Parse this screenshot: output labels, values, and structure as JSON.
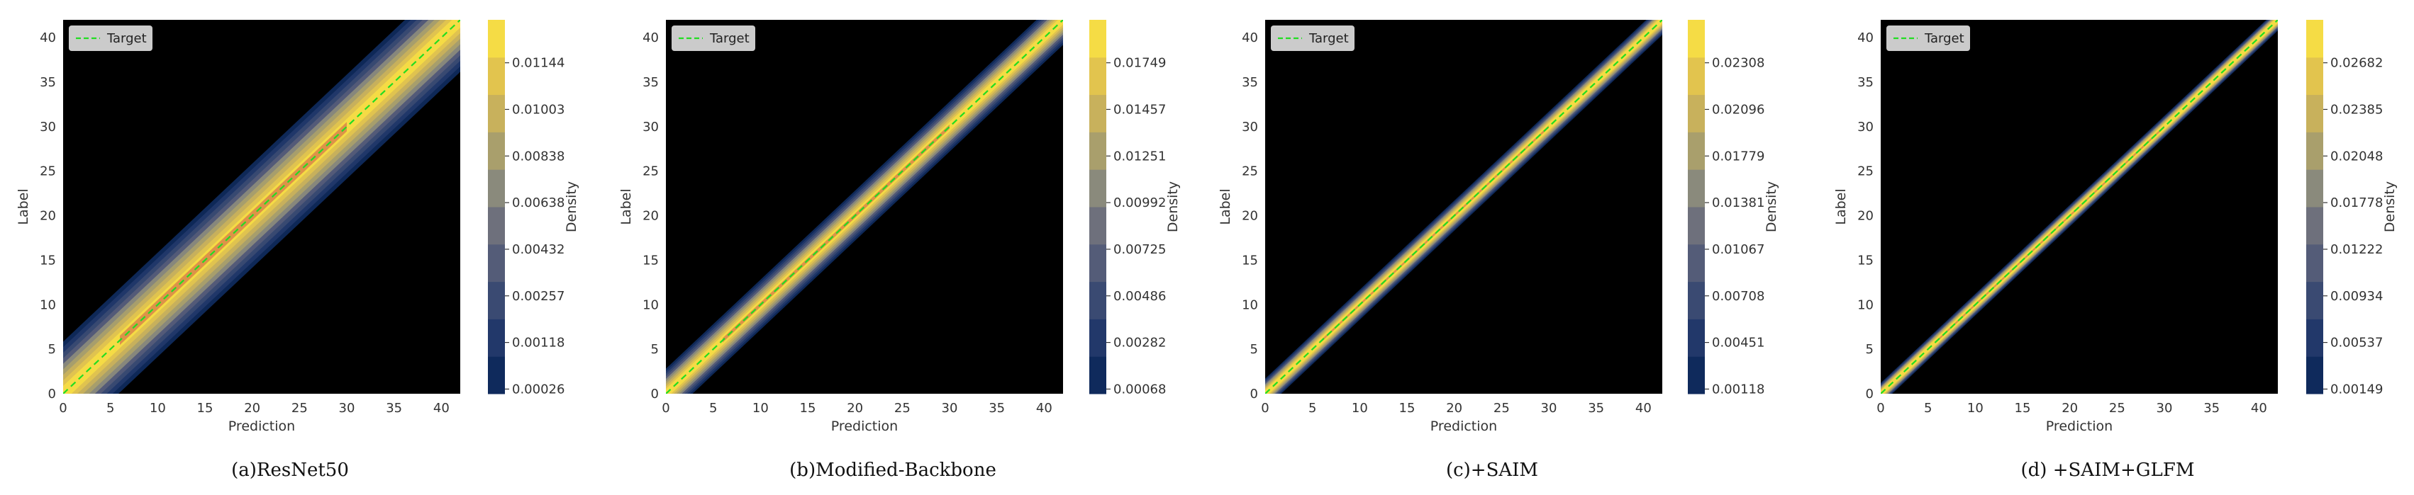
{
  "figure": {
    "colors": {
      "background": "#ffffff",
      "plot_bg": "#000000",
      "target_line": "#22dd22",
      "axis_text": "#333333"
    }
  },
  "chart_data": [
    {
      "type": "heatmap",
      "caption": "(a)ResNet50",
      "xlabel": "Prediction",
      "ylabel": "Label",
      "xlim": [
        0,
        42
      ],
      "ylim": [
        0,
        42
      ],
      "xticks": [
        0,
        5,
        10,
        15,
        20,
        25,
        30,
        35,
        40
      ],
      "yticks": [
        0,
        5,
        10,
        15,
        20,
        25,
        30,
        35,
        40
      ],
      "legend": {
        "entries": [
          "Target"
        ],
        "placement": "upper-left"
      },
      "target_line": {
        "from": [
          0,
          0
        ],
        "to": [
          42,
          42
        ],
        "style": "dashed"
      },
      "density_spread": 3.5,
      "colorbar": {
        "label": "Density",
        "ticks": [
          "0.00026",
          "0.00118",
          "0.00257",
          "0.00432",
          "0.00638",
          "0.00838",
          "0.01003",
          "0.01144"
        ]
      }
    },
    {
      "type": "heatmap",
      "caption": "(b)Modified-Backbone",
      "xlabel": "Prediction",
      "ylabel": "Label",
      "xlim": [
        0,
        42
      ],
      "ylim": [
        0,
        42
      ],
      "xticks": [
        0,
        5,
        10,
        15,
        20,
        25,
        30,
        35,
        40
      ],
      "yticks": [
        0,
        5,
        10,
        15,
        20,
        25,
        30,
        35,
        40
      ],
      "legend": {
        "entries": [
          "Target"
        ],
        "placement": "upper-left"
      },
      "target_line": {
        "from": [
          0,
          0
        ],
        "to": [
          42,
          42
        ],
        "style": "dashed"
      },
      "density_spread": 1.6,
      "colorbar": {
        "label": "Density",
        "ticks": [
          "0.00068",
          "0.00282",
          "0.00486",
          "0.00725",
          "0.00992",
          "0.01251",
          "0.01457",
          "0.01749"
        ]
      }
    },
    {
      "type": "heatmap",
      "caption": "(c)+SAIM",
      "xlabel": "Prediction",
      "ylabel": "Label",
      "xlim": [
        0,
        42
      ],
      "ylim": [
        0,
        42
      ],
      "xticks": [
        0,
        5,
        10,
        15,
        20,
        25,
        30,
        35,
        40
      ],
      "yticks": [
        0,
        5,
        10,
        15,
        20,
        25,
        30,
        35,
        40
      ],
      "legend": {
        "entries": [
          "Target"
        ],
        "placement": "upper-left"
      },
      "target_line": {
        "from": [
          0,
          0
        ],
        "to": [
          42,
          42
        ],
        "style": "dashed"
      },
      "density_spread": 0.9,
      "colorbar": {
        "label": "Density",
        "ticks": [
          "0.00118",
          "0.00451",
          "0.00708",
          "0.01067",
          "0.01381",
          "0.01779",
          "0.02096",
          "0.02308"
        ]
      }
    },
    {
      "type": "heatmap",
      "caption": "(d) +SAIM+GLFM",
      "xlabel": "Prediction",
      "ylabel": "Label",
      "xlim": [
        0,
        42
      ],
      "ylim": [
        0,
        42
      ],
      "xticks": [
        0,
        5,
        10,
        15,
        20,
        25,
        30,
        35,
        40
      ],
      "yticks": [
        0,
        5,
        10,
        15,
        20,
        25,
        30,
        35,
        40
      ],
      "legend": {
        "entries": [
          "Target"
        ],
        "placement": "upper-left"
      },
      "target_line": {
        "from": [
          0,
          0
        ],
        "to": [
          42,
          42
        ],
        "style": "dashed"
      },
      "density_spread": 0.6,
      "colorbar": {
        "label": "Density",
        "ticks": [
          "0.00149",
          "0.00537",
          "0.00934",
          "0.01222",
          "0.01778",
          "0.02048",
          "0.02385",
          "0.02682"
        ]
      }
    }
  ]
}
